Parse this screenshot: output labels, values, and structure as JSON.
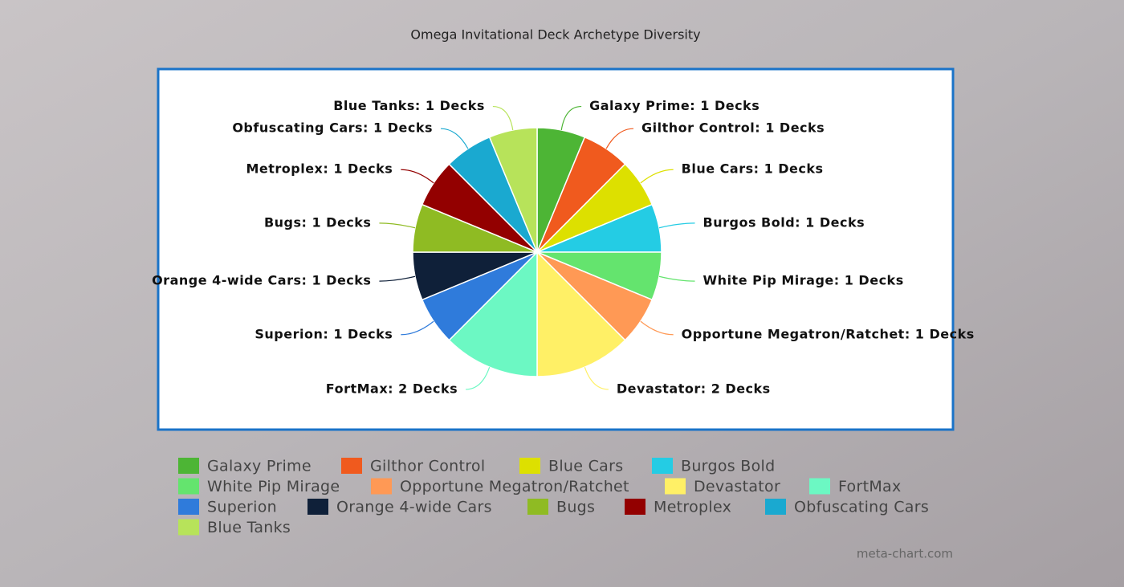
{
  "chart_data": {
    "type": "pie",
    "title": "Omega Invitational Deck Archetype Diversity",
    "categories": [
      "Galaxy Prime",
      "Gilthor Control",
      "Blue Cars",
      "Burgos Bold",
      "White Pip Mirage",
      "Opportune Megatron/Ratchet",
      "Devastator",
      "FortMax",
      "Superion",
      "Orange 4-wide Cars",
      "Bugs",
      "Metroplex",
      "Obfuscating Cars",
      "Blue Tanks"
    ],
    "values": [
      1,
      1,
      1,
      1,
      1,
      1,
      2,
      2,
      1,
      1,
      1,
      1,
      1,
      1
    ],
    "value_labels": [
      "Galaxy Prime: 1 Decks",
      "Gilthor Control: 1 Decks",
      "Blue Cars: 1 Decks",
      "Burgos Bold: 1 Decks",
      "White Pip Mirage: 1 Decks",
      "Opportune Megatron/Ratchet: 1 Decks",
      "Devastator: 2 Decks",
      "FortMax: 2 Decks",
      "Superion: 1 Decks",
      "Orange 4-wide Cars: 1 Decks",
      "Bugs: 1 Decks",
      "Metroplex: 1 Decks",
      "Obfuscating Cars: 1 Decks",
      "Blue Tanks: 1 Decks"
    ],
    "colors": [
      "#4db535",
      "#f05a1e",
      "#dde000",
      "#24cce4",
      "#64e46e",
      "#ff9955",
      "#fff066",
      "#6cf8c3",
      "#2f7bdb",
      "#0f2039",
      "#8fbb23",
      "#930000",
      "#1aa9d0",
      "#b7e35a"
    ],
    "legend": true,
    "watermark": "meta-chart.com"
  }
}
